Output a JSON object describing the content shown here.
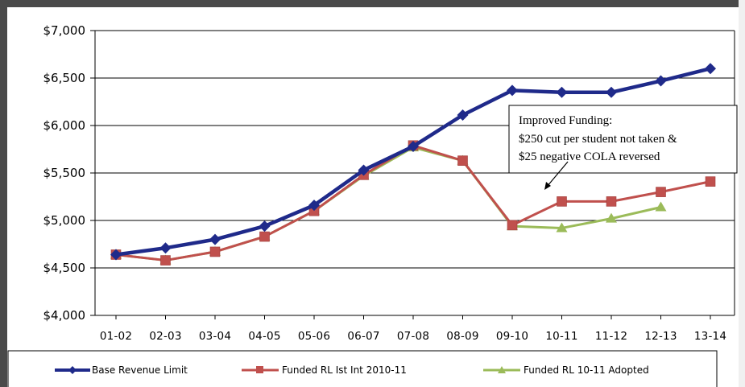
{
  "chart_data": {
    "type": "line",
    "title": "",
    "xlabel": "",
    "ylabel": "",
    "categories": [
      "01-02",
      "02-03",
      "03-04",
      "04-05",
      "05-06",
      "06-07",
      "07-08",
      "08-09",
      "09-10",
      "10-11",
      "11-12",
      "12-13",
      "13-14"
    ],
    "y_tick_labels": [
      "$7,000",
      "$6,500",
      "$6,000",
      "$5,500",
      "$5,000",
      "$4,500",
      "$4,000"
    ],
    "y_ticks": [
      7000,
      6500,
      6000,
      5500,
      5000,
      4500,
      4000
    ],
    "ylim": [
      4000,
      7000
    ],
    "grid": "horizontal",
    "legend_position": "bottom",
    "series": [
      {
        "name": "Base Revenue Limit",
        "color": "#1f2a8a",
        "marker": "diamond",
        "values": [
          4640,
          4710,
          4800,
          4940,
          5160,
          5530,
          5780,
          6110,
          6370,
          6350,
          6350,
          6470,
          6600
        ]
      },
      {
        "name": "Funded RL Ist Int 2010-11",
        "color": "#c0504d",
        "marker": "square",
        "values": [
          4640,
          4580,
          4670,
          4830,
          5100,
          5480,
          5790,
          5630,
          4950,
          5200,
          5200,
          5300,
          5410
        ]
      },
      {
        "name": "Funded  RL 10-11 Adopted",
        "color": "#9bbb59",
        "marker": "triangle",
        "values": [
          4640,
          4580,
          4670,
          4830,
          5100,
          5470,
          5770,
          5630,
          4940,
          4920,
          5020,
          5140,
          null
        ]
      }
    ],
    "annotations": [
      {
        "lines": [
          "Improved Funding:",
          "$250 cut per student not taken &",
          "$25 negative COLA reversed"
        ],
        "points_to": {
          "category": "10-11",
          "value": 5200
        }
      }
    ]
  }
}
